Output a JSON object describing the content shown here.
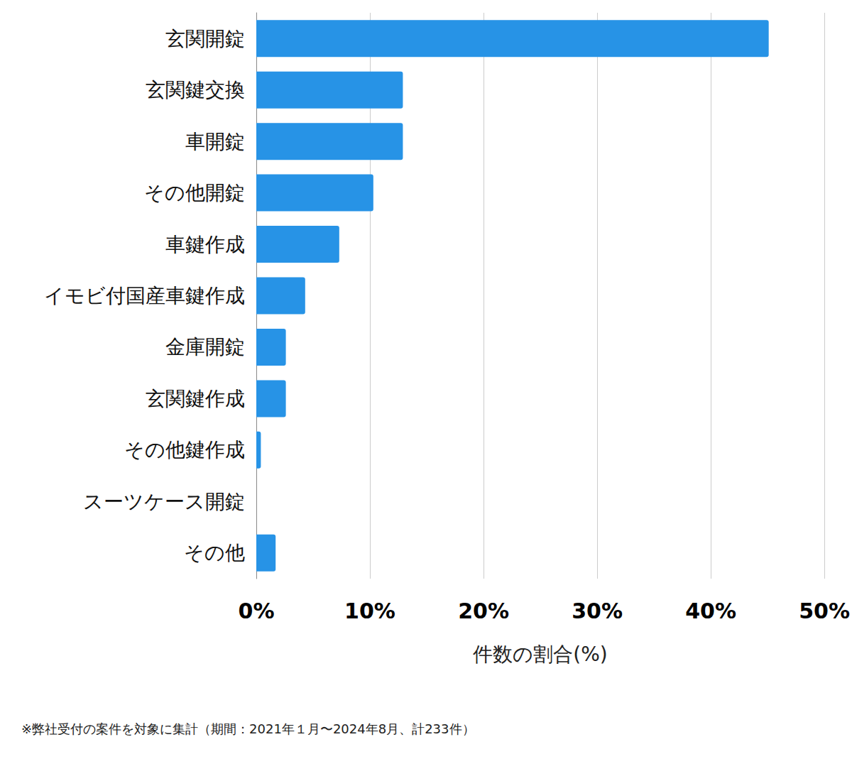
{
  "chart_data": {
    "type": "bar",
    "orientation": "horizontal",
    "categories": [
      "玄関開錠",
      "玄関鍵交換",
      "車開錠",
      "その他開錠",
      "車鍵作成",
      "イモビ付国産車鍵作成",
      "金庫開錠",
      "玄関鍵作成",
      "その他鍵作成",
      "スーツケース開錠",
      "その他"
    ],
    "values": [
      45.1,
      12.9,
      12.9,
      10.3,
      7.3,
      4.3,
      2.6,
      2.6,
      0.4,
      0,
      1.7
    ],
    "color": "#2793e6",
    "x_label": "件数の割合(%)",
    "xlim": [
      0,
      50
    ],
    "xticks": [
      {
        "value": 0,
        "label": "0%"
      },
      {
        "value": 10,
        "label": "10%"
      },
      {
        "value": 20,
        "label": "20%"
      },
      {
        "value": 30,
        "label": "30%"
      },
      {
        "value": 40,
        "label": "40%"
      },
      {
        "value": 50,
        "label": "50%"
      }
    ],
    "grid": true,
    "note": "※弊社受付の案件を対象に集計（期間：2021年１月〜2024年8月、計233件）"
  }
}
